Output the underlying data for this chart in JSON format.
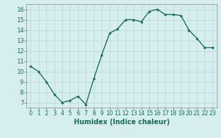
{
  "x": [
    0,
    1,
    2,
    3,
    4,
    5,
    6,
    7,
    8,
    9,
    10,
    11,
    12,
    13,
    14,
    15,
    16,
    17,
    18,
    19,
    20,
    21,
    22,
    23
  ],
  "y": [
    10.5,
    10.0,
    9.0,
    7.8,
    7.0,
    7.2,
    7.6,
    6.8,
    9.3,
    11.6,
    13.7,
    14.1,
    15.0,
    15.0,
    14.8,
    15.8,
    16.0,
    15.5,
    15.5,
    15.4,
    14.0,
    13.2,
    12.3,
    12.3
  ],
  "line_color": "#1a6b5a",
  "marker": "o",
  "marker_size": 2,
  "linewidth": 1.0,
  "xlabel": "Humidex (Indice chaleur)",
  "xlabel_fontsize": 7,
  "bg_color": "#d6eeee",
  "grid_color": "#b5d5d5",
  "xlim": [
    -0.5,
    23.5
  ],
  "ylim": [
    6.5,
    16.5
  ],
  "yticks": [
    7,
    8,
    9,
    10,
    11,
    12,
    13,
    14,
    15,
    16
  ],
  "xticks": [
    0,
    1,
    2,
    3,
    4,
    5,
    6,
    7,
    8,
    9,
    10,
    11,
    12,
    13,
    14,
    15,
    16,
    17,
    18,
    19,
    20,
    21,
    22,
    23
  ],
  "tick_fontsize": 6,
  "title": ""
}
